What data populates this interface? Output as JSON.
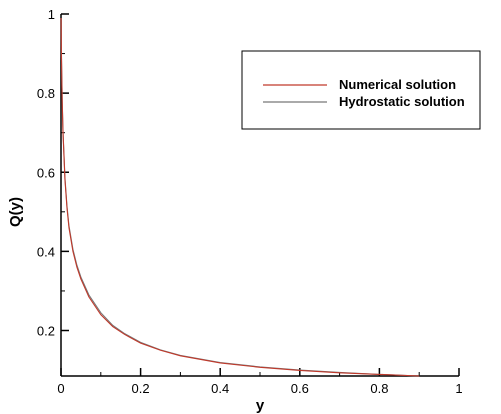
{
  "chart_data": {
    "type": "line",
    "title": "",
    "xlabel": "y",
    "ylabel": "Q(y)",
    "xlim": [
      0,
      1
    ],
    "ylim": [
      0.085,
      1.0
    ],
    "x_ticks": [
      0,
      0.2,
      0.4,
      0.6,
      0.8,
      1
    ],
    "x_tick_labels": [
      "0",
      "0.2",
      "0.4",
      "0.6",
      "0.8",
      "1"
    ],
    "y_ticks": [
      0.2,
      0.4,
      0.6,
      0.8,
      1
    ],
    "y_tick_labels": [
      "0.2",
      "0.4",
      "0.6",
      "0.8",
      "1"
    ],
    "grid": false,
    "legend_position": "top-right",
    "series": [
      {
        "name": "Numerical solution",
        "color": "#c0392b",
        "x": [
          0.001,
          0.003,
          0.005,
          0.01,
          0.015,
          0.02,
          0.03,
          0.04,
          0.05,
          0.07,
          0.1,
          0.13,
          0.16,
          0.2,
          0.25,
          0.3,
          0.4,
          0.5,
          0.6,
          0.7,
          0.8,
          0.9
        ],
        "y": [
          0.9,
          0.78,
          0.7,
          0.58,
          0.51,
          0.46,
          0.4,
          0.36,
          0.33,
          0.285,
          0.24,
          0.21,
          0.19,
          0.168,
          0.15,
          0.136,
          0.118,
          0.107,
          0.099,
          0.093,
          0.089,
          0.085
        ]
      },
      {
        "name": "Hydrostatic solution",
        "color": "#777777",
        "x": [
          0.001,
          0.003,
          0.005,
          0.01,
          0.015,
          0.02,
          0.03,
          0.04,
          0.05,
          0.07,
          0.1,
          0.13,
          0.16,
          0.2,
          0.25,
          0.3,
          0.4,
          0.5,
          0.6,
          0.7,
          0.8,
          0.9
        ],
        "y": [
          0.905,
          0.785,
          0.705,
          0.585,
          0.515,
          0.465,
          0.405,
          0.365,
          0.335,
          0.29,
          0.245,
          0.213,
          0.192,
          0.17,
          0.151,
          0.137,
          0.119,
          0.108,
          0.1,
          0.094,
          0.089,
          0.085
        ]
      }
    ]
  }
}
